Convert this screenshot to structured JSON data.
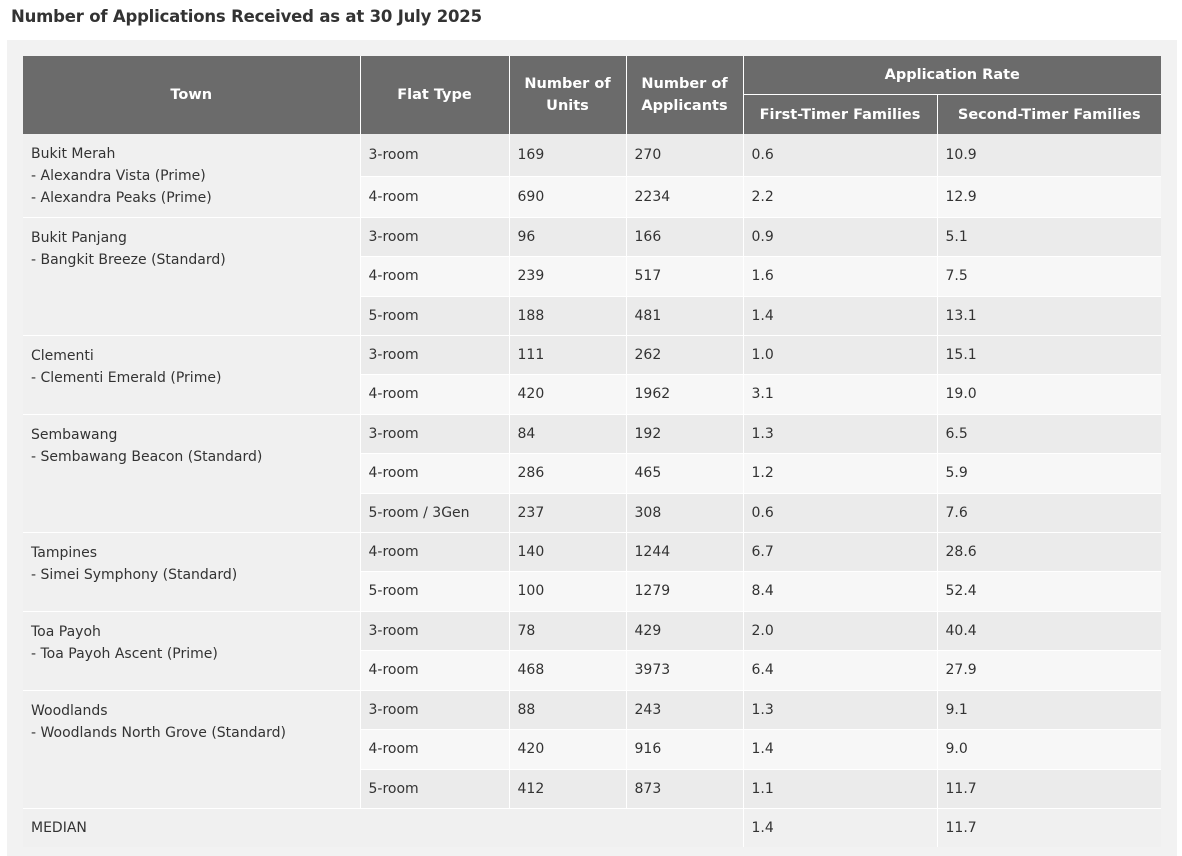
{
  "title": "Number of Applications Received as at 30 July 2025",
  "headers": {
    "town": "Town",
    "flat_type": "Flat Type",
    "units": "Number of Units",
    "applicants": "Number of Applicants",
    "rate": "Application Rate",
    "first_timer": "First-Timer Families",
    "second_timer": "Second-Timer Families"
  },
  "towns": [
    {
      "name": "Bukit Merah",
      "projects": [
        "- Alexandra Vista (Prime)",
        "- Alexandra Peaks (Prime)"
      ],
      "rows": [
        {
          "flat_type": "3-room",
          "units": "169",
          "applicants": "270",
          "first": "0.6",
          "second": "10.9"
        },
        {
          "flat_type": "4-room",
          "units": "690",
          "applicants": "2234",
          "first": "2.2",
          "second": "12.9"
        }
      ]
    },
    {
      "name": "Bukit Panjang",
      "projects": [
        "- Bangkit Breeze (Standard)"
      ],
      "rows": [
        {
          "flat_type": "3-room",
          "units": "96",
          "applicants": "166",
          "first": "0.9",
          "second": "5.1"
        },
        {
          "flat_type": "4-room",
          "units": "239",
          "applicants": "517",
          "first": "1.6",
          "second": "7.5"
        },
        {
          "flat_type": "5-room",
          "units": "188",
          "applicants": "481",
          "first": "1.4",
          "second": "13.1"
        }
      ]
    },
    {
      "name": "Clementi",
      "projects": [
        "- Clementi Emerald (Prime)"
      ],
      "rows": [
        {
          "flat_type": "3-room",
          "units": "111",
          "applicants": "262",
          "first": "1.0",
          "second": "15.1"
        },
        {
          "flat_type": "4-room",
          "units": "420",
          "applicants": "1962",
          "first": "3.1",
          "second": "19.0"
        }
      ]
    },
    {
      "name": "Sembawang",
      "projects": [
        "- Sembawang Beacon (Standard)"
      ],
      "rows": [
        {
          "flat_type": "3-room",
          "units": "84",
          "applicants": "192",
          "first": "1.3",
          "second": "6.5"
        },
        {
          "flat_type": "4-room",
          "units": "286",
          "applicants": "465",
          "first": "1.2",
          "second": "5.9"
        },
        {
          "flat_type": "5-room / 3Gen",
          "units": "237",
          "applicants": "308",
          "first": "0.6",
          "second": "7.6"
        }
      ]
    },
    {
      "name": "Tampines",
      "projects": [
        "- Simei Symphony (Standard)"
      ],
      "rows": [
        {
          "flat_type": "4-room",
          "units": "140",
          "applicants": "1244",
          "first": "6.7",
          "second": "28.6"
        },
        {
          "flat_type": "5-room",
          "units": "100",
          "applicants": "1279",
          "first": "8.4",
          "second": "52.4"
        }
      ]
    },
    {
      "name": "Toa Payoh",
      "projects": [
        "- Toa Payoh Ascent (Prime)"
      ],
      "rows": [
        {
          "flat_type": "3-room",
          "units": "78",
          "applicants": "429",
          "first": "2.0",
          "second": "40.4"
        },
        {
          "flat_type": "4-room",
          "units": "468",
          "applicants": "3973",
          "first": "6.4",
          "second": "27.9"
        }
      ]
    },
    {
      "name": "Woodlands",
      "projects": [
        "- Woodlands North Grove (Standard)"
      ],
      "rows": [
        {
          "flat_type": "3-room",
          "units": "88",
          "applicants": "243",
          "first": "1.3",
          "second": "9.1"
        },
        {
          "flat_type": "4-room",
          "units": "420",
          "applicants": "916",
          "first": "1.4",
          "second": "9.0"
        },
        {
          "flat_type": "5-room",
          "units": "412",
          "applicants": "873",
          "first": "1.1",
          "second": "11.7"
        }
      ]
    }
  ],
  "median": {
    "label": "MEDIAN",
    "first": "1.4",
    "second": "11.7"
  }
}
